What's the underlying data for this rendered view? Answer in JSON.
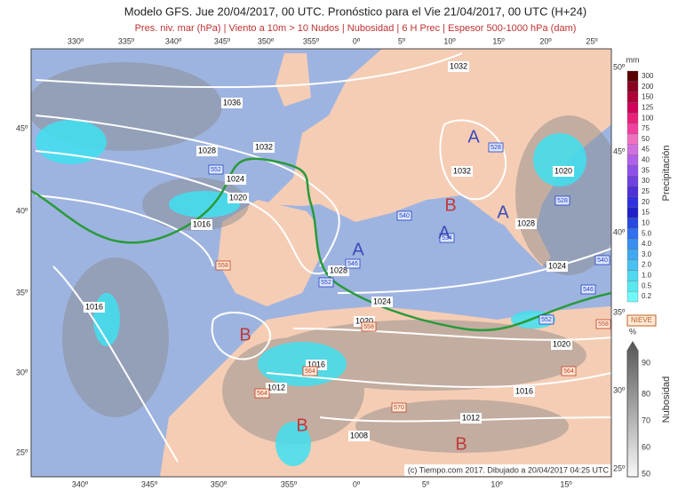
{
  "header": {
    "title": "Modelo GFS. Jue 20/04/2017, 00 UTC. Pronóstico para el Vie 21/04/2017, 00 UTC (H+24)",
    "subtitle": "Pres. niv. mar (hPa) | Viento a 10m > 10 Nudos | Nubosidad | 6 H Prec | Espesor 500-1000 hPa (dam)"
  },
  "map": {
    "lon_top": [
      "330º",
      "335º",
      "340º",
      "345º",
      "350º",
      "355º",
      "0º",
      "5º",
      "10º",
      "15º",
      "20º",
      "25º"
    ],
    "lon_bottom": [
      "340º",
      "345º",
      "350º",
      "355º",
      "0º",
      "5º",
      "10º",
      "15º"
    ],
    "lat_left": [
      "45º",
      "40º",
      "35º",
      "30º",
      "25º"
    ],
    "lat_right": [
      "50º",
      "45º",
      "40º",
      "35º",
      "30º",
      "25º"
    ],
    "isobars": [
      "1032",
      "1036",
      "1028",
      "1032",
      "1024",
      "1020",
      "1016",
      "1032",
      "1020",
      "1028",
      "1024",
      "1028",
      "1024",
      "1020",
      "1016",
      "1020",
      "1016",
      "1012",
      "1016",
      "1012",
      "1008"
    ],
    "thickness": [
      "552",
      "528",
      "528",
      "540",
      "534",
      "546",
      "552",
      "558",
      "540",
      "546",
      "552",
      "558",
      "564",
      "564",
      "570",
      "564",
      "558"
    ],
    "centers": [
      "A",
      "B",
      "A",
      "A",
      "A",
      "B",
      "B",
      "B"
    ],
    "credit": "(c) Tiempo.com 2017. Dibujado a 20/04/2017 04:25 UTC"
  },
  "legend": {
    "precip_unit": "mm",
    "precip_title": "Precipitación",
    "precip_levels": [
      {
        "label": "300",
        "color": "#5a0000"
      },
      {
        "label": "200",
        "color": "#8b0020"
      },
      {
        "label": "150",
        "color": "#b0003a"
      },
      {
        "label": "125",
        "color": "#d0005a"
      },
      {
        "label": "100",
        "color": "#e8207a"
      },
      {
        "label": "75",
        "color": "#f040a0"
      },
      {
        "label": "50",
        "color": "#f070c0"
      },
      {
        "label": "45",
        "color": "#d070e0"
      },
      {
        "label": "40",
        "color": "#b060e8"
      },
      {
        "label": "35",
        "color": "#9050e8"
      },
      {
        "label": "30",
        "color": "#7040e0"
      },
      {
        "label": "25",
        "color": "#5030d8"
      },
      {
        "label": "20",
        "color": "#3030e0"
      },
      {
        "label": "15",
        "color": "#2020c8"
      },
      {
        "label": "10",
        "color": "#2848e0"
      },
      {
        "label": "5.0",
        "color": "#3070f0"
      },
      {
        "label": "4.0",
        "color": "#3890f0"
      },
      {
        "label": "3.0",
        "color": "#40a8f0"
      },
      {
        "label": "2.0",
        "color": "#48c0f0"
      },
      {
        "label": "1.0",
        "color": "#50d8f0"
      },
      {
        "label": "0.5",
        "color": "#58e8f0"
      },
      {
        "label": "0.2",
        "color": "#70f8f8"
      }
    ],
    "snow": "NIEVE",
    "cloud_unit": "%",
    "cloud_title": "Nubosidad",
    "cloud_levels": [
      "90",
      "80",
      "70",
      "60",
      "50"
    ]
  }
}
